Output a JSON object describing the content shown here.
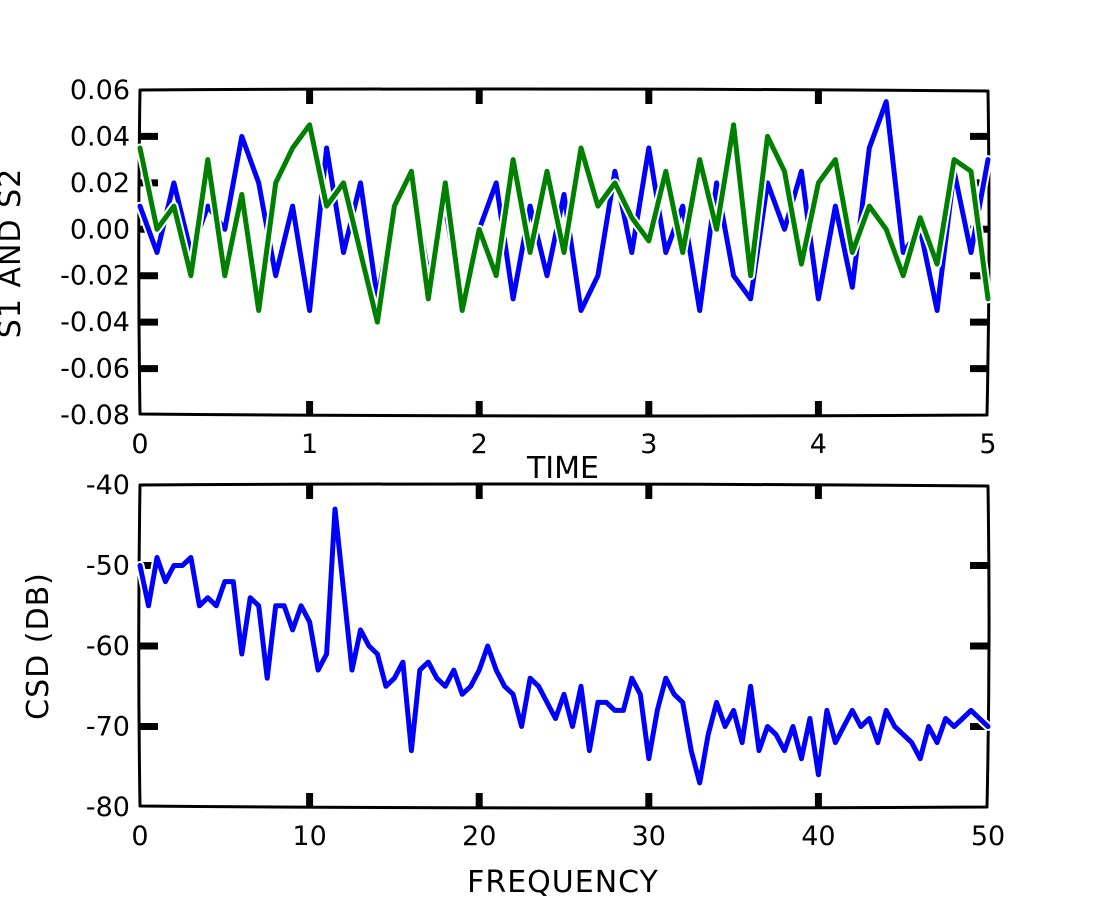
{
  "chart_data": [
    {
      "type": "line",
      "title": "",
      "xlabel": "TIME",
      "ylabel": "S1 AND S2",
      "xlim": [
        0,
        5
      ],
      "ylim": [
        -0.08,
        0.06
      ],
      "xticks": [
        "0",
        "1",
        "2",
        "3",
        "4",
        "5"
      ],
      "yticks": [
        "0.06",
        "0.04",
        "0.02",
        "0.00",
        "-0.02",
        "-0.04",
        "-0.06",
        "-0.08"
      ],
      "grid": false,
      "colors": [
        "#0000ff",
        "#008000"
      ],
      "x": [
        0.0,
        0.1,
        0.2,
        0.3,
        0.4,
        0.5,
        0.6,
        0.7,
        0.8,
        0.9,
        1.0,
        1.1,
        1.2,
        1.3,
        1.4,
        1.5,
        1.6,
        1.7,
        1.8,
        1.9,
        2.0,
        2.1,
        2.2,
        2.3,
        2.4,
        2.5,
        2.6,
        2.7,
        2.8,
        2.9,
        3.0,
        3.1,
        3.2,
        3.3,
        3.4,
        3.5,
        3.6,
        3.7,
        3.8,
        3.9,
        4.0,
        4.1,
        4.2,
        4.3,
        4.4,
        4.5,
        4.6,
        4.7,
        4.8,
        4.9,
        5.0
      ],
      "series": [
        {
          "values": [
            0.01,
            -0.01,
            0.02,
            -0.01,
            0.01,
            0.0,
            0.04,
            0.02,
            -0.02,
            0.01,
            -0.035,
            0.035,
            -0.01,
            0.02,
            -0.03,
            0.01,
            0.025,
            -0.02,
            0.01,
            -0.035,
            0.0,
            0.02,
            -0.03,
            0.01,
            -0.02,
            0.015,
            -0.035,
            -0.02,
            0.025,
            -0.01,
            0.035,
            -0.01,
            0.01,
            -0.035,
            0.02,
            -0.02,
            -0.03,
            0.02,
            0.0,
            0.025,
            -0.03,
            0.01,
            -0.025,
            0.035,
            0.055,
            -0.01,
            0.0,
            -0.035,
            0.025,
            -0.01,
            0.03
          ]
        },
        {
          "values": [
            0.035,
            0.0,
            0.01,
            -0.02,
            0.03,
            -0.02,
            0.015,
            -0.035,
            0.02,
            0.035,
            0.045,
            0.01,
            0.02,
            -0.01,
            -0.04,
            0.01,
            0.025,
            -0.03,
            0.02,
            -0.035,
            0.0,
            -0.02,
            0.03,
            -0.01,
            0.025,
            -0.01,
            0.035,
            0.01,
            0.02,
            0.005,
            -0.005,
            0.025,
            -0.01,
            0.03,
            0.0,
            0.045,
            -0.02,
            0.04,
            0.025,
            -0.015,
            0.02,
            0.03,
            -0.01,
            0.01,
            0.0,
            -0.02,
            0.005,
            -0.015,
            0.03,
            0.025,
            -0.03
          ]
        }
      ]
    },
    {
      "type": "line",
      "title": "",
      "xlabel": "FREQUENCY",
      "ylabel": "CSD (DB)",
      "xlim": [
        0,
        50
      ],
      "ylim": [
        -80,
        -40
      ],
      "xticks": [
        "0",
        "10",
        "20",
        "30",
        "40",
        "50"
      ],
      "yticks": [
        "-40",
        "-50",
        "-60",
        "-70",
        "-80"
      ],
      "grid": false,
      "colors": [
        "#0000ff"
      ],
      "x": [
        0.0,
        0.5,
        1.0,
        1.5,
        2.0,
        2.5,
        3.0,
        3.5,
        4.0,
        4.5,
        5.0,
        5.5,
        6.0,
        6.5,
        7.0,
        7.5,
        8.0,
        8.5,
        9.0,
        9.5,
        10.0,
        10.5,
        11.0,
        11.5,
        12.0,
        12.5,
        13.0,
        13.5,
        14.0,
        14.5,
        15.0,
        15.5,
        16.0,
        16.5,
        17.0,
        17.5,
        18.0,
        18.5,
        19.0,
        19.5,
        20.0,
        20.5,
        21.0,
        21.5,
        22.0,
        22.5,
        23.0,
        23.5,
        24.0,
        24.5,
        25.0,
        25.5,
        26.0,
        26.5,
        27.0,
        27.5,
        28.0,
        28.5,
        29.0,
        29.5,
        30.0,
        30.5,
        31.0,
        31.5,
        32.0,
        32.5,
        33.0,
        33.5,
        34.0,
        34.5,
        35.0,
        35.5,
        36.0,
        36.5,
        37.0,
        37.5,
        38.0,
        38.5,
        39.0,
        39.5,
        40.0,
        40.5,
        41.0,
        41.5,
        42.0,
        42.5,
        43.0,
        43.5,
        44.0,
        44.5,
        45.0,
        45.5,
        46.0,
        46.5,
        47.0,
        47.5,
        48.0,
        48.5,
        49.0,
        49.5,
        50.0
      ],
      "series": [
        {
          "values": [
            -50,
            -55,
            -49,
            -52,
            -50,
            -50,
            -49,
            -55,
            -54,
            -55,
            -52,
            -52,
            -61,
            -54,
            -55,
            -64,
            -55,
            -55,
            -58,
            -55,
            -57,
            -63,
            -61,
            -43,
            -53,
            -63,
            -58,
            -60,
            -61,
            -65,
            -64,
            -62,
            -73,
            -63,
            -62,
            -64,
            -65,
            -63,
            -66,
            -65,
            -63,
            -60,
            -63,
            -65,
            -66,
            -70,
            -64,
            -65,
            -67,
            -69,
            -66,
            -70,
            -65,
            -73,
            -67,
            -67,
            -68,
            -68,
            -64,
            -66,
            -74,
            -68,
            -64,
            -66,
            -67,
            -73,
            -77,
            -71,
            -67,
            -70,
            -68,
            -72,
            -65,
            -73,
            -70,
            -71,
            -73,
            -70,
            -74,
            -69,
            -76,
            -68,
            -72,
            -70,
            -68,
            -70,
            -69,
            -72,
            -68,
            -70,
            -71,
            -72,
            -74,
            -70,
            -72,
            -69,
            -70,
            -69,
            -68,
            -69,
            -70
          ]
        }
      ]
    }
  ]
}
